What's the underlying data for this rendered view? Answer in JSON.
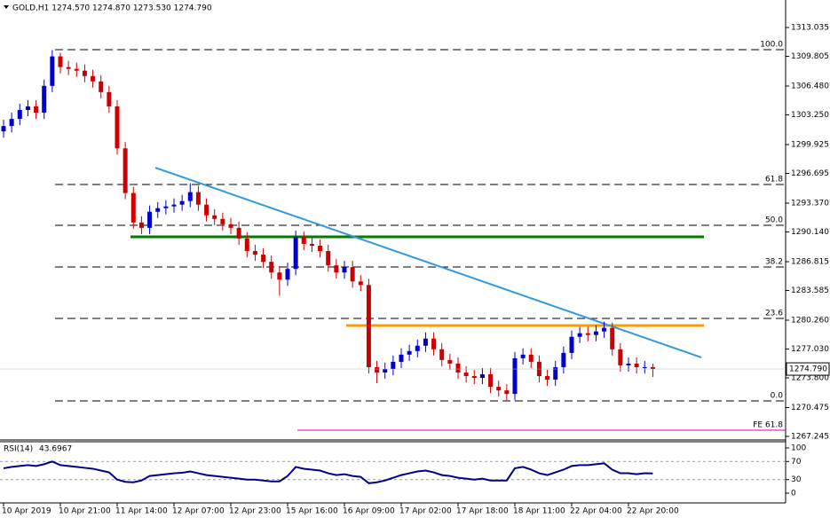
{
  "chart_data": [
    {
      "type": "candlestick",
      "symbol_info": "GOLD,H1  1274.570 1274.870 1273.530 1274.790",
      "categories": [
        "10 Apr 2019",
        null,
        null,
        null,
        null,
        null,
        null,
        "10 Apr 21:00",
        null,
        null,
        null,
        null,
        null,
        null,
        "11 Apr 14:00",
        null,
        null,
        null,
        null,
        null,
        null,
        "12 Apr 07:00",
        null,
        null,
        null,
        null,
        null,
        null,
        "12 Apr 23:00",
        null,
        null,
        null,
        null,
        null,
        null,
        "15 Apr 16:00",
        null,
        null,
        null,
        null,
        null,
        null,
        "16 Apr 09:00",
        null,
        null,
        null,
        null,
        null,
        null,
        "17 Apr 02:00",
        null,
        null,
        null,
        null,
        null,
        null,
        "17 Apr 18:00",
        null,
        null,
        null,
        null,
        null,
        null,
        "18 Apr 11:00",
        null,
        null,
        null,
        null,
        null,
        null,
        "22 Apr 04:00",
        null,
        null,
        null,
        null,
        null,
        null,
        "22 Apr 20:00",
        null,
        null,
        null
      ],
      "open": [
        1301.4,
        1302.0,
        1302.8,
        1303.8,
        1304.2,
        1303.5,
        1306.5,
        1309.8,
        1308.6,
        1308.4,
        1308.2,
        1307.6,
        1307.0,
        1305.8,
        1304.2,
        1299.5,
        1294.5,
        1291.2,
        1290.6,
        1292.4,
        1292.8,
        1293.0,
        1293.2,
        1293.6,
        1294.6,
        1293.2,
        1292.0,
        1291.6,
        1291.0,
        1290.6,
        1289.4,
        1288.0,
        1287.6,
        1286.8,
        1285.6,
        1284.8,
        1286.0,
        1289.6,
        1288.8,
        1288.6,
        1288.0,
        1286.4,
        1285.6,
        1286.2,
        1284.6,
        1284.2,
        1275.0,
        1274.4,
        1274.8,
        1275.6,
        1276.4,
        1276.8,
        1277.4,
        1278.2,
        1277.0,
        1275.8,
        1275.4,
        1274.4,
        1274.0,
        1273.8,
        1274.2,
        1272.8,
        1272.4,
        1272.0,
        1276.0,
        1276.4,
        1275.6,
        1274.0,
        1273.6,
        1275.0,
        1276.6,
        1278.4,
        1278.8,
        1278.6,
        1279.0,
        1279.4,
        1277.0,
        1275.2,
        1275.4,
        1275.0,
        1275.0
      ],
      "high": [
        1302.7,
        1303.5,
        1304.5,
        1304.9,
        1304.9,
        1307.2,
        1310.5,
        1310.2,
        1309.3,
        1309.1,
        1308.9,
        1308.3,
        1307.7,
        1306.5,
        1304.9,
        1300.2,
        1295.2,
        1291.9,
        1293.1,
        1293.5,
        1293.7,
        1293.9,
        1294.3,
        1295.6,
        1295.3,
        1293.9,
        1292.7,
        1292.3,
        1291.7,
        1291.3,
        1290.1,
        1288.7,
        1288.3,
        1287.5,
        1286.3,
        1286.7,
        1290.3,
        1290.2,
        1289.5,
        1289.3,
        1288.7,
        1287.1,
        1286.9,
        1286.9,
        1285.3,
        1284.9,
        1275.7,
        1275.5,
        1276.3,
        1277.1,
        1277.5,
        1278.1,
        1278.9,
        1278.9,
        1277.7,
        1276.5,
        1276.1,
        1275.1,
        1274.7,
        1274.9,
        1274.9,
        1273.5,
        1273.1,
        1276.7,
        1277.1,
        1277.1,
        1276.3,
        1274.7,
        1275.7,
        1277.3,
        1279.1,
        1279.5,
        1279.5,
        1279.7,
        1280.1,
        1280.0,
        1277.7,
        1276.1,
        1276.1,
        1275.7,
        1275.4
      ],
      "low": [
        1300.7,
        1301.3,
        1302.1,
        1303.1,
        1302.8,
        1302.8,
        1305.8,
        1307.9,
        1307.7,
        1307.5,
        1306.9,
        1306.3,
        1305.1,
        1303.5,
        1298.8,
        1293.8,
        1290.5,
        1289.9,
        1289.9,
        1291.7,
        1292.1,
        1292.3,
        1292.5,
        1292.9,
        1292.5,
        1291.3,
        1290.9,
        1290.3,
        1289.9,
        1288.7,
        1287.3,
        1286.9,
        1286.1,
        1284.9,
        1283.0,
        1284.1,
        1285.3,
        1288.1,
        1287.9,
        1287.3,
        1285.7,
        1284.9,
        1284.9,
        1283.9,
        1283.5,
        1274.3,
        1273.2,
        1273.7,
        1274.1,
        1274.9,
        1275.7,
        1276.1,
        1276.7,
        1276.3,
        1275.1,
        1274.7,
        1273.7,
        1273.3,
        1273.1,
        1273.1,
        1272.1,
        1271.7,
        1271.3,
        1271.3,
        1275.3,
        1274.9,
        1273.3,
        1272.9,
        1272.9,
        1274.3,
        1275.9,
        1277.7,
        1277.9,
        1277.9,
        1278.3,
        1276.3,
        1274.5,
        1274.5,
        1274.3,
        1274.3,
        1273.9
      ],
      "close": [
        1302.0,
        1302.8,
        1303.8,
        1304.2,
        1303.5,
        1306.5,
        1309.8,
        1308.6,
        1308.4,
        1308.2,
        1307.6,
        1307.0,
        1305.8,
        1304.2,
        1299.5,
        1294.5,
        1291.2,
        1290.6,
        1292.4,
        1292.8,
        1293.0,
        1293.2,
        1293.6,
        1294.6,
        1293.2,
        1292.0,
        1291.6,
        1291.0,
        1290.6,
        1289.4,
        1288.0,
        1287.6,
        1286.8,
        1285.6,
        1284.8,
        1286.0,
        1289.6,
        1288.8,
        1288.6,
        1288.0,
        1286.4,
        1285.6,
        1286.2,
        1284.6,
        1284.2,
        1275.0,
        1274.4,
        1274.8,
        1275.6,
        1276.4,
        1276.8,
        1277.4,
        1278.2,
        1277.0,
        1275.8,
        1275.4,
        1274.4,
        1274.0,
        1273.8,
        1274.2,
        1272.8,
        1272.4,
        1272.0,
        1276.0,
        1276.4,
        1275.6,
        1274.0,
        1273.6,
        1275.0,
        1276.6,
        1278.4,
        1278.8,
        1278.6,
        1279.0,
        1279.4,
        1277.0,
        1275.2,
        1275.4,
        1275.0,
        1275.0,
        1274.79
      ],
      "up_color": "#0000cd",
      "down_color": "#cc0000",
      "ylim": [
        1316.115,
        1266.75
      ],
      "yticks": [
        1313.035,
        1309.805,
        {
          "value": 1306.48,
          "label": "1306.480"
        },
        {
          "value": 1303.25,
          "label": "1303.250"
        },
        1299.925,
        1296.695,
        {
          "value": 1293.37,
          "label": "1293.370"
        },
        {
          "value": 1290.14,
          "label": "1290.140"
        },
        1286.815,
        1283.585,
        {
          "value": 1280.26,
          "label": "1280.260"
        },
        {
          "value": 1277.03,
          "label": "1277.030"
        },
        {
          "value": 1273.8,
          "label": "1273.800"
        },
        1270.475,
        1267.245
      ],
      "price_marker": {
        "value": 1274.79,
        "label": "1274.790"
      },
      "levels": [
        {
          "label": "100.0",
          "value": 1310.55,
          "color": "#000000"
        },
        {
          "label": "61.8",
          "value": 1295.45,
          "color": "#000000"
        },
        {
          "label": "50.0",
          "value": 1290.89,
          "color": "#000000"
        },
        {
          "label": "38.2",
          "value": 1286.22,
          "color": "#000000"
        },
        {
          "label": "23.6",
          "value": 1280.46,
          "color": "#000000"
        },
        {
          "label": "0.0",
          "value": 1271.22,
          "color": "#000000"
        },
        {
          "label": "FE 61.8",
          "value": 1267.94,
          "color": "#cc00cc"
        }
      ],
      "lines": [
        {
          "start": 1289.59,
          "end": 1289.59,
          "color": "#007a00"
        },
        {
          "start": 1279.66,
          "end": 1279.66,
          "color": "#ff9900"
        },
        {
          "start": 1297.34,
          "end": 1276.09,
          "color": "#3399dd"
        }
      ]
    },
    {
      "type": "line",
      "name": "RSI(14)",
      "color": "#00008b",
      "values": [
        55,
        58,
        60,
        62,
        60,
        64,
        70,
        62,
        60,
        58,
        56,
        54,
        50,
        46,
        30,
        25,
        24,
        28,
        38,
        40,
        42,
        44,
        45,
        48,
        44,
        40,
        38,
        36,
        34,
        32,
        30,
        30,
        28,
        26,
        26,
        38,
        58,
        54,
        52,
        50,
        44,
        40,
        42,
        38,
        36,
        22,
        24,
        28,
        34,
        40,
        44,
        48,
        50,
        46,
        40,
        38,
        34,
        32,
        30,
        32,
        28,
        28,
        28,
        55,
        58,
        52,
        44,
        40,
        46,
        52,
        60,
        62,
        62,
        64,
        66,
        52,
        44,
        44,
        42,
        44,
        43.6967
      ],
      "ylim": [
        0,
        100
      ],
      "yticks": [
        100,
        70,
        30,
        0
      ],
      "levels": [
        70,
        30
      ]
    }
  ]
}
